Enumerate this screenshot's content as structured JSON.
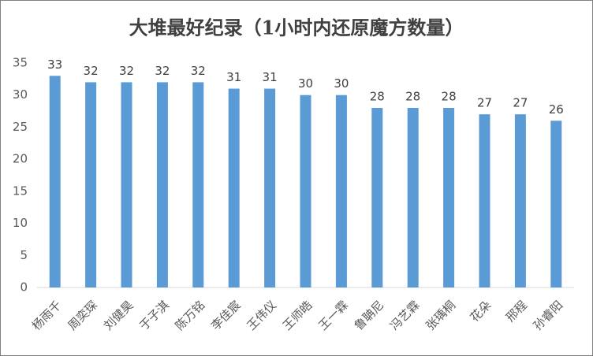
{
  "chart_data": {
    "type": "bar",
    "title": "大堆最好纪录（1小时内还原魔方数量）",
    "categories": [
      "杨雨千",
      "周奕琛",
      "刘健昊",
      "于子淇",
      "陈万铭",
      "李佳宸",
      "王伟仪",
      "王师皓",
      "王一霖",
      "鲁聃尼",
      "冯艺霖",
      "张瑀桐",
      "花朵",
      "邢程",
      "孙睿阳"
    ],
    "values": [
      33,
      32,
      32,
      32,
      32,
      31,
      31,
      30,
      30,
      28,
      28,
      28,
      27,
      27,
      26
    ],
    "color": "#5b9bd5",
    "ylim": [
      0,
      35
    ],
    "yticks": [
      0,
      5,
      10,
      15,
      20,
      25,
      30,
      35
    ],
    "grid": false
  }
}
